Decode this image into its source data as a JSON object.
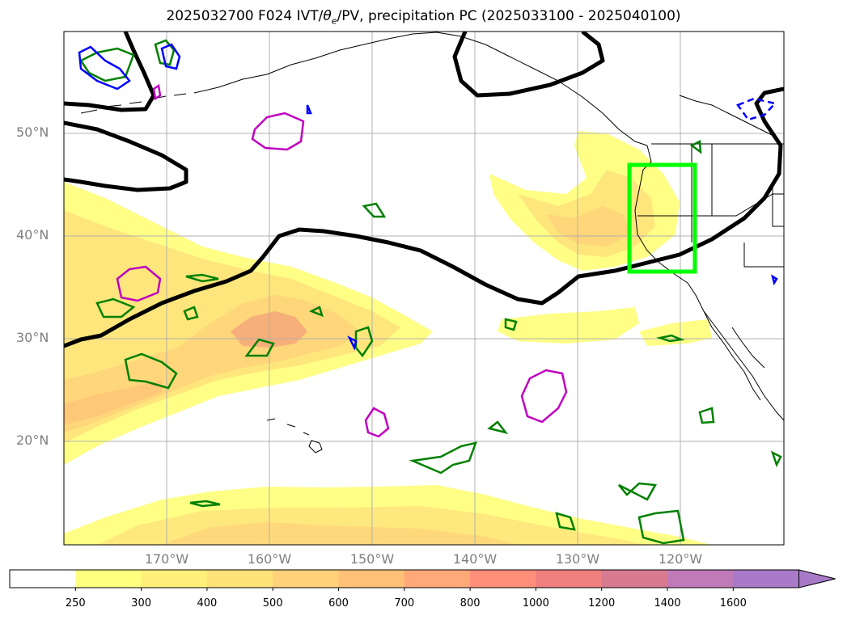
{
  "title": "2025032700 F024 IVT/θe/PV, precipitation PC (2025033100 - 2025040100)",
  "title_parts": {
    "prefix": "2025032700 F024 IVT/",
    "theta": "θ",
    "theta_sub": "e",
    "suffix": "/PV, precipitation PC (2025033100 - 2025040100)"
  },
  "latitude_labels": [
    "50°N",
    "40°N",
    "30°N",
    "20°N"
  ],
  "longitude_labels": [
    "170°W",
    "160°W",
    "150°W",
    "140°W",
    "130°W",
    "120°W"
  ],
  "colorbar": {
    "ticks": [
      "250",
      "300",
      "400",
      "500",
      "600",
      "700",
      "800",
      "1000",
      "1200",
      "1400",
      "1600"
    ],
    "colors": [
      "#ffffff",
      "#ffff80",
      "#fff07a",
      "#ffe27a",
      "#ffd27a",
      "#ffc078",
      "#ffa878",
      "#ff8e7a",
      "#f08080",
      "#d87a90",
      "#c07ab8",
      "#a87ac8"
    ],
    "extend": "max"
  },
  "colors": {
    "ivt_fill_low": "#ffff80",
    "ivt_fill_mid": "#ffd87a",
    "ivt_fill_high": "#f5a878",
    "theta_contour": "#000000",
    "pv_positive": "#008000",
    "pv_magenta": "#c000c0",
    "pv_negative": "#0000ff",
    "target_box": "#00ff00"
  },
  "map": {
    "lat_range": [
      10,
      60
    ],
    "lon_range": [
      180,
      110
    ],
    "projection": "PlateCarree",
    "gridlines": true
  },
  "target_box": {
    "lon": [
      -125,
      -119
    ],
    "lat": [
      36.5,
      47
    ]
  }
}
